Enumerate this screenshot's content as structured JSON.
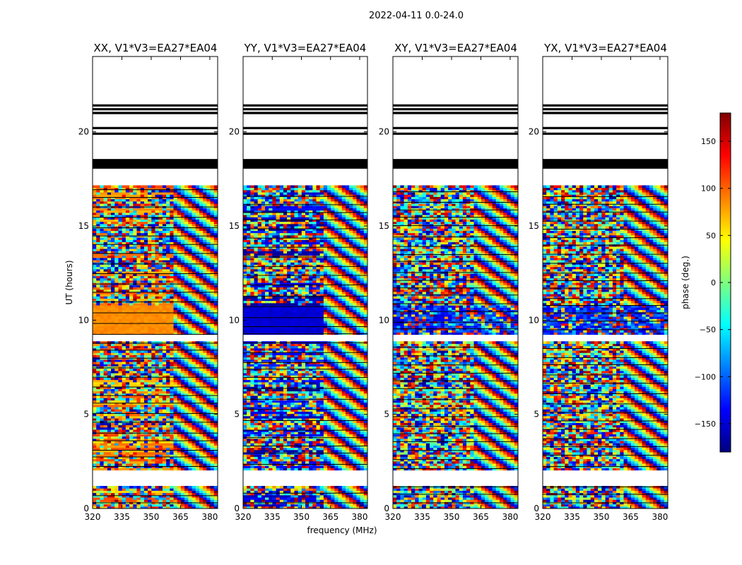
{
  "figure": {
    "suptitle": "2022-04-11 0.0-24.0"
  },
  "chart_data": {
    "type": "heatmap",
    "xlabel": "frequency (MHz)",
    "ylabel": "UT (hours)",
    "xlim": [
      320,
      384
    ],
    "ylim": [
      0,
      24
    ],
    "xticks": [
      320,
      335,
      350,
      365,
      380
    ],
    "yticks": [
      0,
      5,
      10,
      15,
      20
    ],
    "colorbar": {
      "label": "phase (deg.)",
      "range": [
        -180,
        180
      ],
      "ticks": [
        150,
        100,
        50,
        0,
        -50,
        -100,
        -150
      ],
      "tick_labels": [
        "150",
        "100",
        "50",
        "0",
        "−50",
        "−100",
        "−150"
      ],
      "colormap": [
        "#00007f",
        "#0000ff",
        "#007fff",
        "#00ffff",
        "#7fff7f",
        "#ffff00",
        "#ff7f00",
        "#ff0000",
        "#7f0000"
      ]
    },
    "panels": [
      {
        "title": "XX, V1*V3=EA27*EA04",
        "band_phase": 85,
        "band_note": "coherent orange (~85 deg) in 320-361 MHz during ~9.2-10.7 UT"
      },
      {
        "title": "YY, V1*V3=EA27*EA04",
        "band_phase": -150,
        "band_note": "coherent blue (~-150 deg) in 320-361 MHz during ~9.2-10.7 UT"
      },
      {
        "title": "XY, V1*V3=EA27*EA04",
        "band_phase": -120,
        "band_note": "weak blue tendency; mostly noisy"
      },
      {
        "title": "YX, V1*V3=EA27*EA04",
        "band_phase": -120,
        "band_note": "weak blue tendency; mostly noisy"
      }
    ],
    "data_coverage_hours": [
      [
        0,
        1.2
      ],
      [
        2.1,
        8.9
      ],
      [
        9.2,
        17.1
      ]
    ],
    "flagged_black_lines_hours": [
      18.1,
      18.2,
      18.3,
      18.4,
      18.5,
      19.9,
      20.2,
      21.0,
      21.2,
      21.4
    ]
  }
}
